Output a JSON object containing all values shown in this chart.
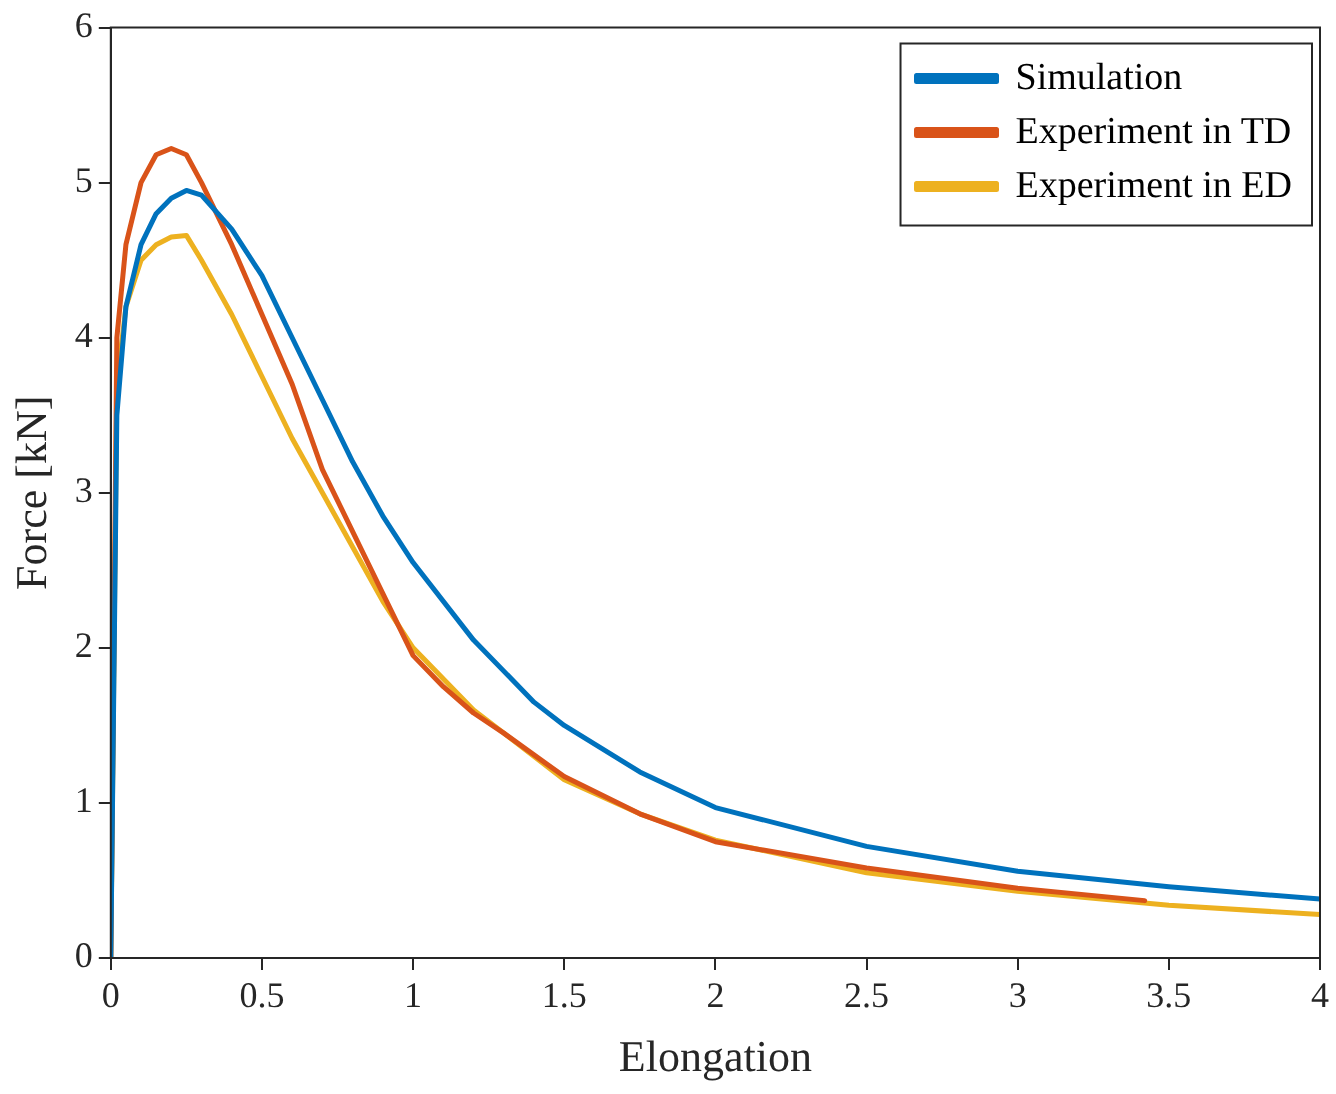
{
  "chart_data": {
    "type": "line",
    "xlabel": "Elongation",
    "ylabel": "Force [kN]",
    "xlim": [
      0,
      4
    ],
    "ylim": [
      0,
      6
    ],
    "xticks": [
      0,
      0.5,
      1,
      1.5,
      2,
      2.5,
      3,
      3.5,
      4
    ],
    "yticks": [
      0,
      1,
      2,
      3,
      4,
      5,
      6
    ],
    "grid": false,
    "legend": "top right",
    "marker": "none",
    "line_style": "solid",
    "series": [
      {
        "name": "Simulation",
        "color": "#0072bd",
        "x": [
          0,
          0.02,
          0.05,
          0.1,
          0.15,
          0.2,
          0.25,
          0.3,
          0.4,
          0.5,
          0.6,
          0.7,
          0.8,
          0.9,
          1,
          1.2,
          1.4,
          1.5,
          1.75,
          2,
          2.5,
          3,
          3.5,
          4
        ],
        "values": [
          0,
          3.5,
          4.2,
          4.6,
          4.8,
          4.9,
          4.95,
          4.92,
          4.7,
          4.4,
          4,
          3.6,
          3.2,
          2.85,
          2.55,
          2.05,
          1.65,
          1.5,
          1.2,
          0.97,
          0.72,
          0.56,
          0.46,
          0.38
        ]
      },
      {
        "name": "Experiment in TD",
        "color": "#d95319",
        "x": [
          0,
          0.02,
          0.05,
          0.1,
          0.15,
          0.2,
          0.25,
          0.3,
          0.4,
          0.5,
          0.6,
          0.7,
          0.8,
          0.9,
          1,
          1.1,
          1.2,
          1.3,
          1.5,
          1.75,
          2,
          2.5,
          3,
          3.42
        ],
        "values": [
          0,
          4,
          4.6,
          5,
          5.18,
          5.22,
          5.18,
          5,
          4.6,
          4.15,
          3.7,
          3.15,
          2.75,
          2.35,
          1.95,
          1.75,
          1.58,
          1.45,
          1.17,
          0.93,
          0.75,
          0.58,
          0.45,
          0.37
        ]
      },
      {
        "name": "Experiment in ED",
        "color": "#edb120",
        "x": [
          0,
          0.02,
          0.05,
          0.1,
          0.15,
          0.2,
          0.25,
          0.3,
          0.4,
          0.5,
          0.6,
          0.7,
          0.8,
          0.9,
          1,
          1.2,
          1.5,
          1.75,
          2,
          2.5,
          3,
          3.5,
          4
        ],
        "values": [
          0,
          3.7,
          4.2,
          4.5,
          4.6,
          4.65,
          4.66,
          4.5,
          4.15,
          3.75,
          3.35,
          3,
          2.65,
          2.3,
          2,
          1.6,
          1.15,
          0.93,
          0.76,
          0.55,
          0.43,
          0.34,
          0.28
        ]
      }
    ]
  }
}
